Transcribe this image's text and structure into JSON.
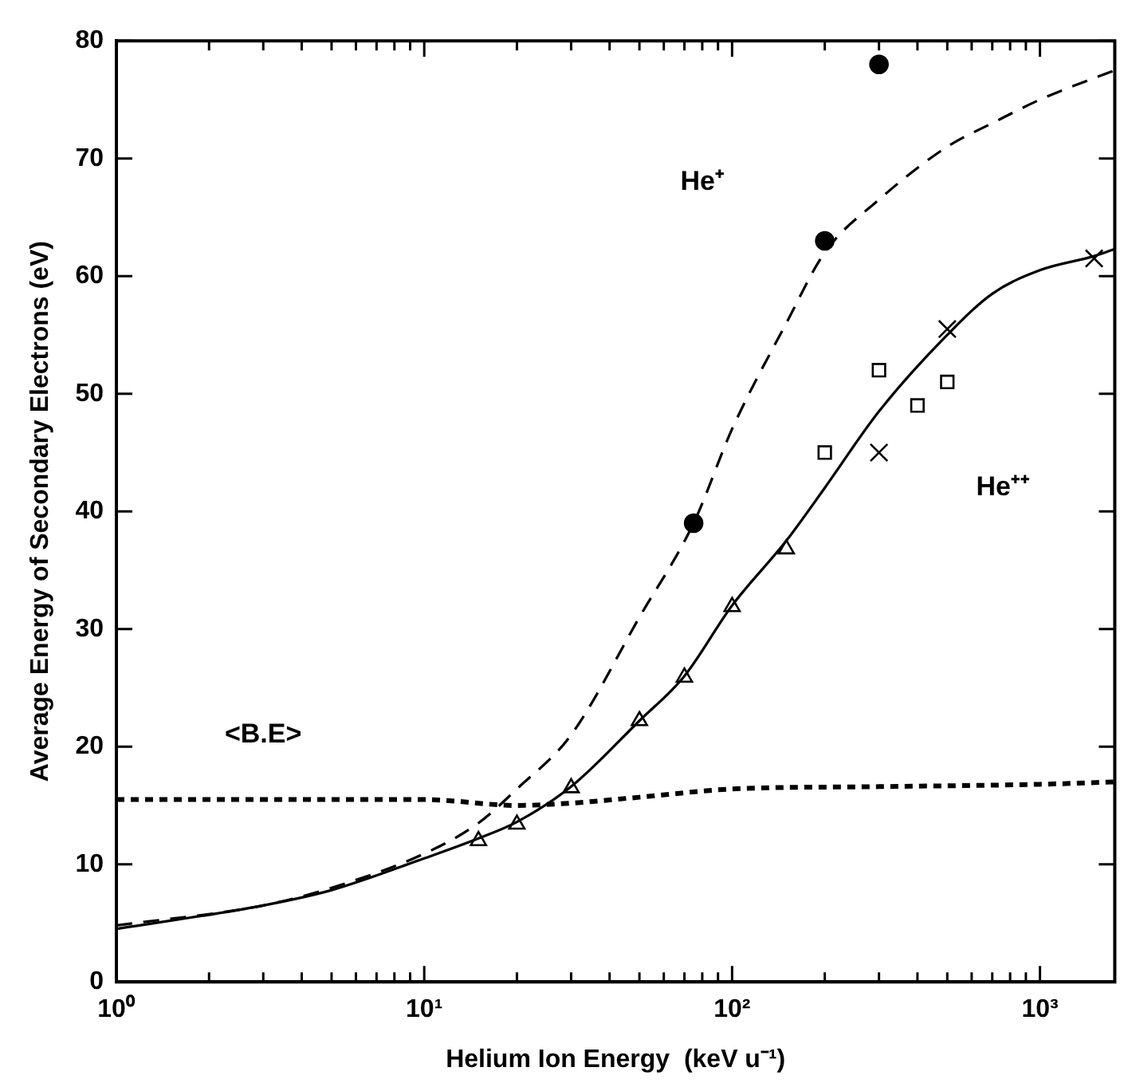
{
  "chart_data": {
    "type": "line",
    "xlabel": "Helium Ion Energy  (keV u⁻¹)",
    "ylabel": "Average Energy of Secondary Electrons (eV)",
    "log": "x",
    "grid": false,
    "legend": false,
    "xlim": [
      1,
      1750
    ],
    "ylim": [
      0,
      80
    ],
    "xticks": [
      {
        "value": 1,
        "label": "10⁰"
      },
      {
        "value": 2,
        "label": null
      },
      {
        "value": 3,
        "label": null
      },
      {
        "value": 4,
        "label": null
      },
      {
        "value": 5,
        "label": null
      },
      {
        "value": 6,
        "label": null
      },
      {
        "value": 7,
        "label": null
      },
      {
        "value": 8,
        "label": null
      },
      {
        "value": 9,
        "label": null
      },
      {
        "value": 10,
        "label": "10¹"
      },
      {
        "value": 20,
        "label": null
      },
      {
        "value": 30,
        "label": null
      },
      {
        "value": 40,
        "label": null
      },
      {
        "value": 50,
        "label": null
      },
      {
        "value": 60,
        "label": null
      },
      {
        "value": 70,
        "label": null
      },
      {
        "value": 80,
        "label": null
      },
      {
        "value": 90,
        "label": null
      },
      {
        "value": 100,
        "label": "10²"
      },
      {
        "value": 200,
        "label": null
      },
      {
        "value": 300,
        "label": null
      },
      {
        "value": 400,
        "label": null
      },
      {
        "value": 500,
        "label": null
      },
      {
        "value": 600,
        "label": null
      },
      {
        "value": 700,
        "label": null
      },
      {
        "value": 800,
        "label": null
      },
      {
        "value": 900,
        "label": null
      },
      {
        "value": 1000,
        "label": "10³"
      }
    ],
    "yticks": [
      0,
      10,
      20,
      30,
      40,
      50,
      60,
      70,
      80
    ],
    "series": [
      {
        "line_style": "dashed",
        "color": "#000000",
        "x": [
          1,
          3,
          5,
          10,
          15,
          20,
          30,
          50,
          75,
          100,
          150,
          200,
          300,
          500,
          700,
          1000,
          1750
        ],
        "values": [
          4.8,
          6.5,
          8,
          10.9,
          13.5,
          16.4,
          21,
          31,
          39,
          47,
          56,
          62,
          66.5,
          71,
          73,
          75,
          77.5
        ]
      },
      {
        "line_style": "solid",
        "color": "#000000",
        "x": [
          1,
          3,
          5,
          10,
          15,
          20,
          30,
          50,
          70,
          100,
          150,
          200,
          300,
          500,
          700,
          1000,
          1500,
          1750
        ],
        "values": [
          4.5,
          6.5,
          7.8,
          10.5,
          12.2,
          13.6,
          16.6,
          22.2,
          26,
          32,
          37.5,
          42,
          48.5,
          55,
          58.5,
          60.5,
          61.7,
          62.3
        ]
      },
      {
        "line_style": "dotted",
        "color": "#000000",
        "x": [
          1,
          10,
          20,
          30,
          50,
          100,
          300,
          1000,
          1750
        ],
        "values": [
          15.5,
          15.5,
          15,
          15.2,
          15.7,
          16.4,
          16.6,
          16.8,
          17
        ]
      },
      {
        "type": "scatter",
        "marker": "circle",
        "color": "#000000",
        "x": [
          75,
          200,
          300
        ],
        "values": [
          39,
          63,
          78
        ]
      },
      {
        "type": "scatter",
        "marker": "square",
        "color": "#000000",
        "x": [
          200,
          300,
          400,
          500
        ],
        "values": [
          45,
          52,
          49,
          51
        ]
      },
      {
        "type": "scatter",
        "marker": "cross",
        "color": "#000000",
        "x": [
          300,
          500,
          1500
        ],
        "values": [
          45,
          55.5,
          61.5
        ]
      },
      {
        "type": "scatter",
        "marker": "triangle",
        "color": "#000000",
        "x": [
          15,
          20,
          30,
          50,
          70,
          100,
          150
        ],
        "values": [
          12,
          13.4,
          16.5,
          22.2,
          25.9,
          31.9,
          36.8
        ]
      }
    ],
    "annotations": [
      "He⁺",
      "He⁺⁺",
      "<B.E>"
    ]
  }
}
